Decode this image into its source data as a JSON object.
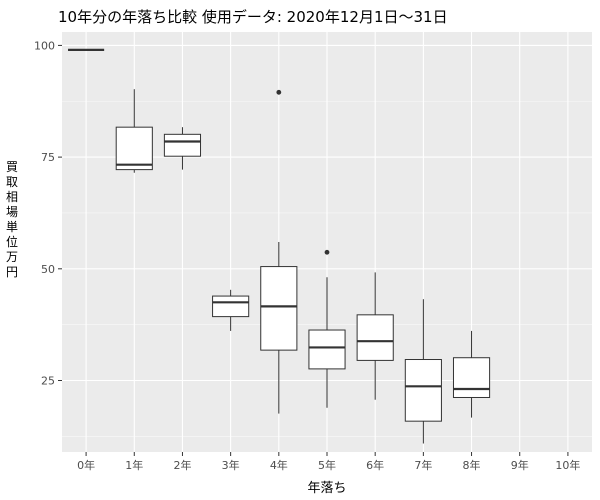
{
  "chart_data": {
    "type": "box",
    "title": "10年分の年落ち比較 使用データ: 2020年12月1日～31日",
    "xlabel": "年落ち",
    "ylabel": "買取相場 単位 万円",
    "categories": [
      "0年",
      "1年",
      "2年",
      "3年",
      "4年",
      "5年",
      "6年",
      "7年",
      "8年",
      "9年",
      "10年"
    ],
    "y_ticks": [
      25,
      50,
      75,
      100
    ],
    "ylim": [
      9,
      103
    ],
    "grid": true,
    "boxes": [
      {
        "category": "0年",
        "lower_whisker": 99,
        "q1": 99,
        "median": 99,
        "q3": 99,
        "upper_whisker": 99,
        "outliers": []
      },
      {
        "category": "1年",
        "lower_whisker": 71.5,
        "q1": 72.2,
        "median": 73.3,
        "q3": 81.7,
        "upper_whisker": 90.2,
        "outliers": []
      },
      {
        "category": "2年",
        "lower_whisker": 72.2,
        "q1": 75.2,
        "median": 78.5,
        "q3": 80.1,
        "upper_whisker": 81.7,
        "outliers": []
      },
      {
        "category": "3年",
        "lower_whisker": 36.1,
        "q1": 39.3,
        "median": 42.5,
        "q3": 43.9,
        "upper_whisker": 45.3,
        "outliers": []
      },
      {
        "category": "4年",
        "lower_whisker": 17.6,
        "q1": 31.8,
        "median": 41.6,
        "q3": 50.5,
        "upper_whisker": 56.0,
        "outliers": [
          89.5
        ]
      },
      {
        "category": "5年",
        "lower_whisker": 18.9,
        "q1": 27.6,
        "median": 32.4,
        "q3": 36.3,
        "upper_whisker": 48.1,
        "outliers": [
          53.7
        ]
      },
      {
        "category": "6年",
        "lower_whisker": 20.7,
        "q1": 29.5,
        "median": 33.8,
        "q3": 39.7,
        "upper_whisker": 49.2,
        "outliers": []
      },
      {
        "category": "7年",
        "lower_whisker": 10.9,
        "q1": 15.9,
        "median": 23.7,
        "q3": 29.7,
        "upper_whisker": 43.2,
        "outliers": []
      },
      {
        "category": "8年",
        "lower_whisker": 16.7,
        "q1": 21.2,
        "median": 23.1,
        "q3": 30.1,
        "upper_whisker": 36.1,
        "outliers": []
      },
      {
        "category": "9年",
        "lower_whisker": null,
        "q1": null,
        "median": null,
        "q3": null,
        "upper_whisker": null,
        "outliers": []
      },
      {
        "category": "10年",
        "lower_whisker": null,
        "q1": null,
        "median": null,
        "q3": null,
        "upper_whisker": null,
        "outliers": []
      }
    ],
    "colors": {
      "panel": "#ebebeb",
      "grid_major": "#ffffff",
      "box_fill": "#ffffff",
      "box_stroke": "#333333",
      "tick_text": "#4d4d4d"
    }
  }
}
